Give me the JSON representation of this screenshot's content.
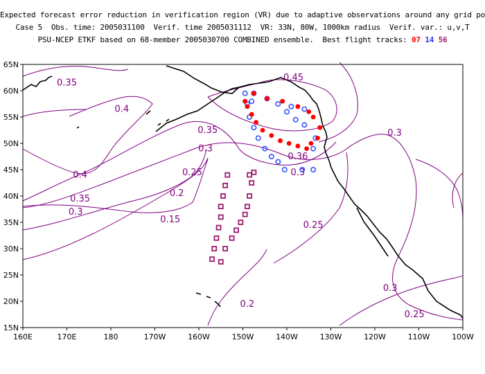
{
  "title": {
    "line1": "Expected forecast error reduction in verification region (VR) due to adaptive observations around any grid point.",
    "line2": "Case 5  Obs. time: 2005031100  Verif. time 2005031112  VR: 33N, 80W, 1000km radius  Verif. var.: u,v,T",
    "line3_prefix": "PSU-NCEP ETKF based on 68-member 2005030700 COMBINED ensemble.  Best flight tracks:",
    "tracks": [
      {
        "label": "07",
        "color": "#ff0000"
      },
      {
        "label": "14",
        "color": "#3333ff"
      },
      {
        "label": "56",
        "color": "#a0206e"
      }
    ]
  },
  "axes": {
    "x_ticks": [
      "160E",
      "170E",
      "180",
      "170W",
      "160W",
      "150W",
      "140W",
      "130W",
      "120W",
      "110W",
      "100W"
    ],
    "y_ticks": [
      "15N",
      "20N",
      "25N",
      "30N",
      "35N",
      "40N",
      "45N",
      "50N",
      "55N",
      "60N",
      "65N"
    ],
    "lon_range": [
      160,
      260
    ],
    "lat_range": [
      15,
      65
    ]
  },
  "contour_labels": [
    {
      "text": "0.35",
      "lon": 170,
      "lat": 61.5
    },
    {
      "text": "0.4",
      "lon": 182.5,
      "lat": 56.5
    },
    {
      "text": "0.45",
      "lon": 221.5,
      "lat": 62.5
    },
    {
      "text": "0.35",
      "lon": 202,
      "lat": 52.5
    },
    {
      "text": "0.3",
      "lon": 201.5,
      "lat": 49
    },
    {
      "text": "0.3",
      "lon": 244.5,
      "lat": 52.0
    },
    {
      "text": "0.36",
      "lon": 222.5,
      "lat": 47.5
    },
    {
      "text": "0.3",
      "lon": 222.5,
      "lat": 44.5
    },
    {
      "text": "0.25",
      "lon": 198.5,
      "lat": 44.5
    },
    {
      "text": "0.4",
      "lon": 173,
      "lat": 44
    },
    {
      "text": "0.2",
      "lon": 195,
      "lat": 40.5
    },
    {
      "text": "0.35",
      "lon": 173,
      "lat": 39.5
    },
    {
      "text": "0.3",
      "lon": 172,
      "lat": 37
    },
    {
      "text": "0.15",
      "lon": 193.5,
      "lat": 35.5
    },
    {
      "text": "0.25",
      "lon": 226,
      "lat": 34.5
    },
    {
      "text": "0.3",
      "lon": 243.5,
      "lat": 22.5
    },
    {
      "text": "0.2",
      "lon": 211,
      "lat": 19.5
    },
    {
      "text": "0.25",
      "lon": 249,
      "lat": 17.5
    }
  ],
  "flight_tracks": {
    "07": [
      {
        "lon": 210.5,
        "lat": 58.0
      },
      {
        "lon": 212.5,
        "lat": 59.5
      },
      {
        "lon": 215.5,
        "lat": 58.5
      },
      {
        "lon": 219,
        "lat": 58.0
      },
      {
        "lon": 222.5,
        "lat": 57.0
      },
      {
        "lon": 225,
        "lat": 56.0
      },
      {
        "lon": 226,
        "lat": 55.0
      },
      {
        "lon": 227.5,
        "lat": 53.0
      },
      {
        "lon": 227,
        "lat": 51.0
      },
      {
        "lon": 225.5,
        "lat": 50.0
      },
      {
        "lon": 224.5,
        "lat": 49.0
      },
      {
        "lon": 222.5,
        "lat": 49.5
      },
      {
        "lon": 220.5,
        "lat": 50.0
      },
      {
        "lon": 218.5,
        "lat": 50.5
      },
      {
        "lon": 216.5,
        "lat": 51.5
      },
      {
        "lon": 214.5,
        "lat": 52.5
      },
      {
        "lon": 213,
        "lat": 54.0
      },
      {
        "lon": 212,
        "lat": 55.5
      },
      {
        "lon": 211,
        "lat": 57.0
      }
    ],
    "14": [
      {
        "lon": 210.5,
        "lat": 59.5
      },
      {
        "lon": 212.5,
        "lat": 59.5
      },
      {
        "lon": 215.5,
        "lat": 58.5
      },
      {
        "lon": 218,
        "lat": 57.5
      },
      {
        "lon": 221,
        "lat": 57.0
      },
      {
        "lon": 224,
        "lat": 56.5
      },
      {
        "lon": 220,
        "lat": 56.0
      },
      {
        "lon": 222,
        "lat": 54.5
      },
      {
        "lon": 224,
        "lat": 53.5
      },
      {
        "lon": 226.5,
        "lat": 51.0
      },
      {
        "lon": 226,
        "lat": 49.0
      },
      {
        "lon": 226,
        "lat": 45.0
      },
      {
        "lon": 223.5,
        "lat": 45.0
      },
      {
        "lon": 219.5,
        "lat": 45.0
      },
      {
        "lon": 218,
        "lat": 46.5
      },
      {
        "lon": 216.5,
        "lat": 47.5
      },
      {
        "lon": 215,
        "lat": 49.0
      },
      {
        "lon": 213.5,
        "lat": 51.0
      },
      {
        "lon": 212.5,
        "lat": 53.0
      },
      {
        "lon": 211.5,
        "lat": 55.0
      },
      {
        "lon": 211,
        "lat": 57.5
      },
      {
        "lon": 212,
        "lat": 58.0
      }
    ],
    "56": [
      {
        "lon": 206.5,
        "lat": 44.0
      },
      {
        "lon": 206,
        "lat": 42.0
      },
      {
        "lon": 205.5,
        "lat": 40.0
      },
      {
        "lon": 205,
        "lat": 38.0
      },
      {
        "lon": 205,
        "lat": 36.0
      },
      {
        "lon": 204.5,
        "lat": 34.0
      },
      {
        "lon": 204,
        "lat": 32.0
      },
      {
        "lon": 203.5,
        "lat": 30.0
      },
      {
        "lon": 203,
        "lat": 28.0
      },
      {
        "lon": 205,
        "lat": 27.5
      },
      {
        "lon": 206,
        "lat": 30.0
      },
      {
        "lon": 207.5,
        "lat": 32.0
      },
      {
        "lon": 208.5,
        "lat": 33.5
      },
      {
        "lon": 209.5,
        "lat": 35.0
      },
      {
        "lon": 210.5,
        "lat": 36.5
      },
      {
        "lon": 211,
        "lat": 38.0
      },
      {
        "lon": 211.5,
        "lat": 40.0
      },
      {
        "lon": 212,
        "lat": 42.5
      },
      {
        "lon": 211.5,
        "lat": 44.0
      },
      {
        "lon": 212.5,
        "lat": 44.5
      }
    ]
  },
  "colors": {
    "contour": "#800080",
    "coast": "#000000",
    "track_07": "#ff0000",
    "track_14": "#3355ff",
    "track_56": "#9b1b6e"
  }
}
